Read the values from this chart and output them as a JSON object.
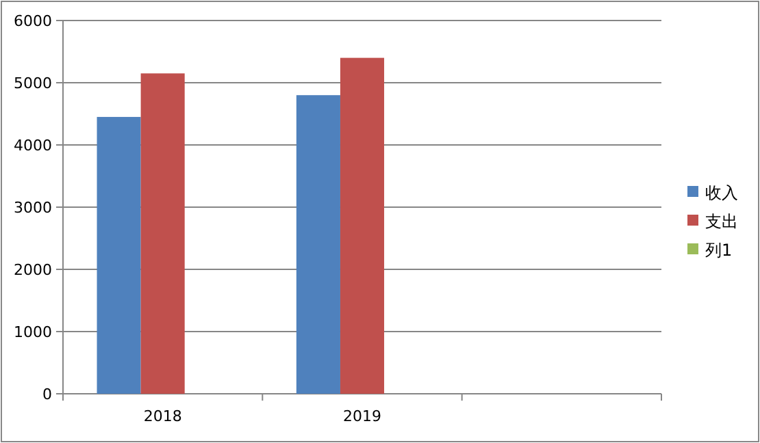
{
  "chart_data": {
    "type": "bar",
    "categories": [
      "2018",
      "2019",
      null
    ],
    "series": [
      {
        "name": "收入",
        "color": "#4f81bd",
        "values": [
          4450,
          4800,
          null
        ]
      },
      {
        "name": "支出",
        "color": "#c0504d",
        "values": [
          5150,
          5400,
          null
        ]
      },
      {
        "name": "列1",
        "color": "#9bbb59",
        "values": [
          null,
          null,
          null
        ]
      }
    ],
    "ylim": [
      0,
      6000
    ],
    "yticks": [
      0,
      1000,
      2000,
      3000,
      4000,
      5000,
      6000
    ],
    "grid": "y",
    "legend": "right"
  }
}
